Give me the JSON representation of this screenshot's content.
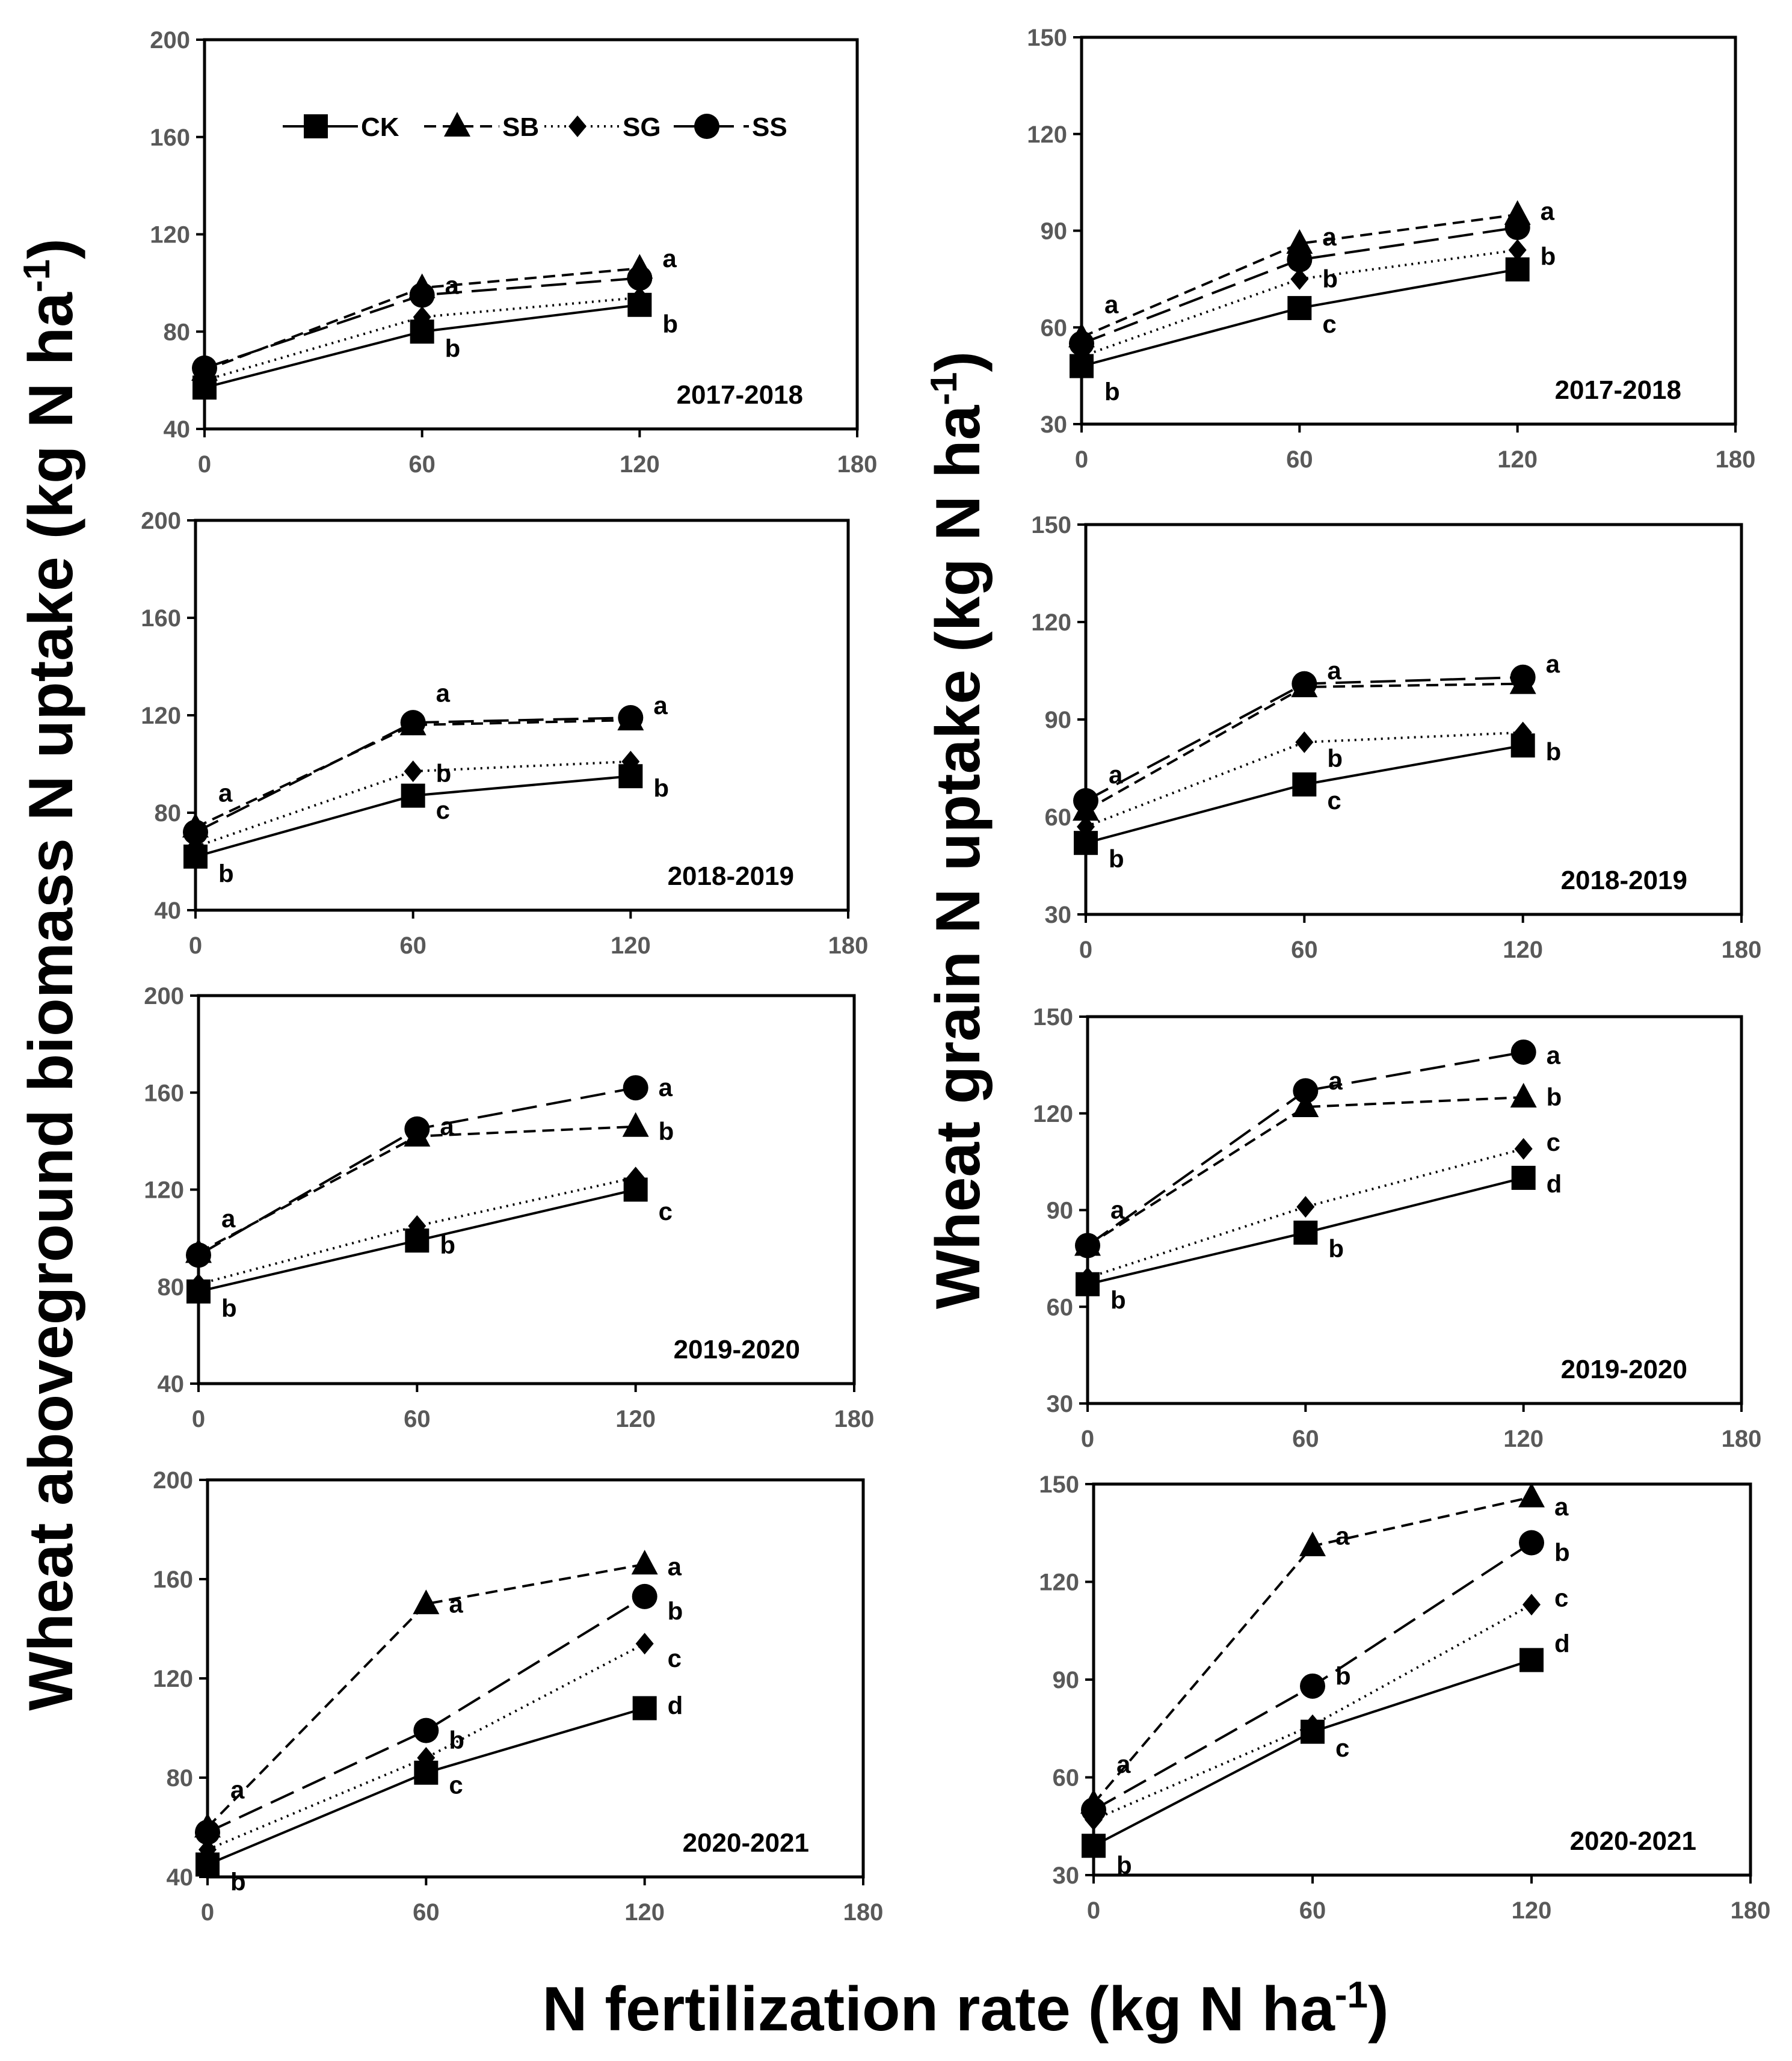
{
  "legend": {
    "entries": [
      {
        "key": "CK",
        "label": "CK"
      },
      {
        "key": "SB",
        "label": "SB"
      },
      {
        "key": "SG",
        "label": "SG"
      },
      {
        "key": "SS",
        "label": "SS"
      }
    ]
  },
  "axis_titles": {
    "left_y": "Wheat aboveground biomass N uptake (kg N ha",
    "right_y": "Wheat grain N uptake (kg N ha",
    "x_main": "N fertilization rate (kg N ha",
    "unit_superscript": "-1",
    "closing_paren": ")"
  },
  "series_styles": {
    "CK": {
      "marker": "square",
      "dash": "none"
    },
    "SB": {
      "marker": "triangle",
      "dash": "short-dash"
    },
    "SG": {
      "marker": "diamond",
      "dash": "dotted"
    },
    "SS": {
      "marker": "circle",
      "dash": "long-dash"
    }
  },
  "chart_data": [
    {
      "id": "biomass-2017-2018",
      "type": "line",
      "year_label": "2017-2018",
      "ylabel": "Wheat aboveground biomass N uptake (kg N ha-1)",
      "xlabel": "N fertilization rate (kg N ha-1)",
      "xlim": [
        0,
        180
      ],
      "ylim": [
        40,
        200
      ],
      "x_ticks": [
        0,
        60,
        120,
        180
      ],
      "y_ticks": [
        40,
        80,
        120,
        160,
        200
      ],
      "x_tick_labels": [
        "0",
        "60",
        "120",
        "180"
      ],
      "y_tick_labels": [
        "40",
        "80",
        "120",
        "160",
        "200"
      ],
      "x": [
        0,
        60,
        120
      ],
      "series": [
        {
          "name": "CK",
          "values": [
            57,
            80,
            91
          ]
        },
        {
          "name": "SB",
          "values": [
            64,
            98,
            106
          ]
        },
        {
          "name": "SG",
          "values": [
            60,
            86,
            94
          ]
        },
        {
          "name": "SS",
          "values": [
            65,
            95,
            102
          ]
        }
      ],
      "annotations": [
        {
          "x": 0,
          "y": 0,
          "text": ""
        },
        {
          "x": 60,
          "y": 99,
          "text": "a"
        },
        {
          "x": 60,
          "y": 73,
          "text": "b"
        },
        {
          "x": 120,
          "y": 110,
          "text": "a"
        },
        {
          "x": 120,
          "y": 83,
          "text": "b"
        }
      ]
    },
    {
      "id": "grain-2017-2018",
      "type": "line",
      "year_label": "2017-2018",
      "ylabel": "Wheat grain N uptake (kg N ha-1)",
      "xlabel": "N fertilization rate (kg N ha-1)",
      "xlim": [
        0,
        180
      ],
      "ylim": [
        30,
        150
      ],
      "x_ticks": [
        0,
        60,
        120,
        180
      ],
      "y_ticks": [
        30,
        60,
        90,
        120,
        150
      ],
      "x_tick_labels": [
        "0",
        "60",
        "120",
        "180"
      ],
      "y_tick_labels": [
        "30",
        "60",
        "90",
        "120",
        "150"
      ],
      "x": [
        0,
        60,
        120
      ],
      "series": [
        {
          "name": "CK",
          "values": [
            48,
            66,
            78
          ]
        },
        {
          "name": "SB",
          "values": [
            57,
            86,
            95
          ]
        },
        {
          "name": "SG",
          "values": [
            51,
            75,
            84
          ]
        },
        {
          "name": "SS",
          "values": [
            55,
            81,
            91
          ]
        }
      ],
      "annotations": [
        {
          "x": 0,
          "y": 67,
          "text": "a"
        },
        {
          "x": 0,
          "y": 40,
          "text": "b"
        },
        {
          "x": 60,
          "y": 88,
          "text": "a"
        },
        {
          "x": 60,
          "y": 75,
          "text": "b"
        },
        {
          "x": 60,
          "y": 61,
          "text": "c"
        },
        {
          "x": 120,
          "y": 96,
          "text": "a"
        },
        {
          "x": 120,
          "y": 82,
          "text": "b"
        }
      ]
    },
    {
      "id": "biomass-2018-2019",
      "type": "line",
      "year_label": "2018-2019",
      "ylabel": "Wheat aboveground biomass N uptake (kg N ha-1)",
      "xlabel": "N fertilization rate (kg N ha-1)",
      "xlim": [
        0,
        180
      ],
      "ylim": [
        40,
        200
      ],
      "x_ticks": [
        0,
        60,
        120,
        180
      ],
      "y_ticks": [
        40,
        80,
        120,
        160,
        200
      ],
      "x_tick_labels": [
        "0",
        "60",
        "120",
        "180"
      ],
      "y_tick_labels": [
        "40",
        "80",
        "120",
        "160",
        "200"
      ],
      "x": [
        0,
        60,
        120
      ],
      "series": [
        {
          "name": "CK",
          "values": [
            62,
            87,
            95
          ]
        },
        {
          "name": "SB",
          "values": [
            74,
            116,
            118
          ]
        },
        {
          "name": "SG",
          "values": [
            66,
            97,
            101
          ]
        },
        {
          "name": "SS",
          "values": [
            72,
            117,
            119
          ]
        }
      ],
      "annotations": [
        {
          "x": 0,
          "y": 88,
          "text": "a"
        },
        {
          "x": 0,
          "y": 55,
          "text": "b"
        },
        {
          "x": 60,
          "y": 129,
          "text": "a"
        },
        {
          "x": 60,
          "y": 96,
          "text": "b"
        },
        {
          "x": 60,
          "y": 81,
          "text": "c"
        },
        {
          "x": 120,
          "y": 124,
          "text": "a"
        },
        {
          "x": 120,
          "y": 90,
          "text": "b"
        }
      ]
    },
    {
      "id": "grain-2018-2019",
      "type": "line",
      "year_label": "2018-2019",
      "ylabel": "Wheat grain N uptake (kg N ha-1)",
      "xlabel": "N fertilization rate (kg N ha-1)",
      "xlim": [
        0,
        180
      ],
      "ylim": [
        30,
        150
      ],
      "x_ticks": [
        0,
        60,
        120,
        180
      ],
      "y_ticks": [
        30,
        60,
        90,
        120,
        150
      ],
      "x_tick_labels": [
        "0",
        "60",
        "120",
        "180"
      ],
      "y_tick_labels": [
        "30",
        "60",
        "90",
        "120",
        "150"
      ],
      "x": [
        0,
        60,
        120
      ],
      "series": [
        {
          "name": "CK",
          "values": [
            52,
            70,
            82
          ]
        },
        {
          "name": "SB",
          "values": [
            62,
            100,
            101
          ]
        },
        {
          "name": "SG",
          "values": [
            57,
            83,
            86
          ]
        },
        {
          "name": "SS",
          "values": [
            65,
            101,
            103
          ]
        }
      ],
      "annotations": [
        {
          "x": 0,
          "y": 73,
          "text": "a"
        },
        {
          "x": 0,
          "y": 47,
          "text": "b"
        },
        {
          "x": 60,
          "y": 105,
          "text": "a"
        },
        {
          "x": 60,
          "y": 78,
          "text": "b"
        },
        {
          "x": 60,
          "y": 65,
          "text": "c"
        },
        {
          "x": 120,
          "y": 107,
          "text": "a"
        },
        {
          "x": 120,
          "y": 80,
          "text": "b"
        }
      ]
    },
    {
      "id": "biomass-2019-2020",
      "type": "line",
      "year_label": "2019-2020",
      "ylabel": "Wheat aboveground biomass N uptake (kg N ha-1)",
      "xlabel": "N fertilization rate (kg N ha-1)",
      "xlim": [
        0,
        180
      ],
      "ylim": [
        40,
        200
      ],
      "x_ticks": [
        0,
        60,
        120,
        180
      ],
      "y_ticks": [
        40,
        80,
        120,
        160,
        200
      ],
      "x_tick_labels": [
        "0",
        "60",
        "120",
        "180"
      ],
      "y_tick_labels": [
        "40",
        "80",
        "120",
        "160",
        "200"
      ],
      "x": [
        0,
        60,
        120
      ],
      "series": [
        {
          "name": "CK",
          "values": [
            78,
            99,
            120
          ]
        },
        {
          "name": "SB",
          "values": [
            94,
            142,
            146
          ]
        },
        {
          "name": "SG",
          "values": [
            81,
            105,
            125
          ]
        },
        {
          "name": "SS",
          "values": [
            93,
            145,
            162
          ]
        }
      ],
      "annotations": [
        {
          "x": 0,
          "y": 108,
          "text": "a"
        },
        {
          "x": 0,
          "y": 71,
          "text": "b"
        },
        {
          "x": 60,
          "y": 146,
          "text": "a"
        },
        {
          "x": 60,
          "y": 97,
          "text": "b"
        },
        {
          "x": 120,
          "y": 162,
          "text": "a"
        },
        {
          "x": 120,
          "y": 144,
          "text": "b"
        },
        {
          "x": 120,
          "y": 111,
          "text": "c"
        }
      ]
    },
    {
      "id": "grain-2019-2020",
      "type": "line",
      "year_label": "2019-2020",
      "ylabel": "Wheat grain N uptake (kg N ha-1)",
      "xlabel": "N fertilization rate (kg N ha-1)",
      "xlim": [
        0,
        180
      ],
      "ylim": [
        30,
        150
      ],
      "x_ticks": [
        0,
        60,
        120,
        180
      ],
      "y_ticks": [
        30,
        60,
        90,
        120,
        150
      ],
      "x_tick_labels": [
        "0",
        "60",
        "120",
        "180"
      ],
      "y_tick_labels": [
        "30",
        "60",
        "90",
        "120",
        "150"
      ],
      "x": [
        0,
        60,
        120
      ],
      "series": [
        {
          "name": "CK",
          "values": [
            67,
            83,
            100
          ]
        },
        {
          "name": "SB",
          "values": [
            79,
            122,
            125
          ]
        },
        {
          "name": "SG",
          "values": [
            69,
            91,
            109
          ]
        },
        {
          "name": "SS",
          "values": [
            79,
            127,
            139
          ]
        }
      ],
      "annotations": [
        {
          "x": 0,
          "y": 90,
          "text": "a"
        },
        {
          "x": 0,
          "y": 62,
          "text": "b"
        },
        {
          "x": 60,
          "y": 130,
          "text": "a"
        },
        {
          "x": 60,
          "y": 78,
          "text": "b"
        },
        {
          "x": 120,
          "y": 138,
          "text": "a"
        },
        {
          "x": 120,
          "y": 125,
          "text": "b"
        },
        {
          "x": 120,
          "y": 111,
          "text": "c"
        },
        {
          "x": 120,
          "y": 98,
          "text": "d"
        }
      ]
    },
    {
      "id": "biomass-2020-2021",
      "type": "line",
      "year_label": "2020-2021",
      "ylabel": "Wheat aboveground biomass N uptake (kg N ha-1)",
      "xlabel": "N fertilization rate (kg N ha-1)",
      "xlim": [
        0,
        180
      ],
      "ylim": [
        40,
        200
      ],
      "x_ticks": [
        0,
        60,
        120,
        180
      ],
      "y_ticks": [
        40,
        80,
        120,
        160,
        200
      ],
      "x_tick_labels": [
        "0",
        "60",
        "120",
        "180"
      ],
      "y_tick_labels": [
        "40",
        "80",
        "120",
        "160",
        "200"
      ],
      "x": [
        0,
        60,
        120
      ],
      "series": [
        {
          "name": "CK",
          "values": [
            45,
            82,
            108
          ]
        },
        {
          "name": "SB",
          "values": [
            60,
            150,
            166
          ]
        },
        {
          "name": "SG",
          "values": [
            51,
            88,
            134
          ]
        },
        {
          "name": "SS",
          "values": [
            58,
            99,
            153
          ]
        }
      ],
      "annotations": [
        {
          "x": 0,
          "y": 75,
          "text": "a"
        },
        {
          "x": 0,
          "y": 38,
          "text": "b"
        },
        {
          "x": 60,
          "y": 150,
          "text": "a"
        },
        {
          "x": 60,
          "y": 95,
          "text": "b"
        },
        {
          "x": 60,
          "y": 77,
          "text": "c"
        },
        {
          "x": 120,
          "y": 165,
          "text": "a"
        },
        {
          "x": 120,
          "y": 147,
          "text": "b"
        },
        {
          "x": 120,
          "y": 128,
          "text": "c"
        },
        {
          "x": 120,
          "y": 109,
          "text": "d"
        }
      ]
    },
    {
      "id": "grain-2020-2021",
      "type": "line",
      "year_label": "2020-2021",
      "ylabel": "Wheat grain N uptake (kg N ha-1)",
      "xlabel": "N fertilization rate (kg N ha-1)",
      "xlim": [
        0,
        180
      ],
      "ylim": [
        30,
        150
      ],
      "x_ticks": [
        0,
        60,
        120,
        180
      ],
      "y_ticks": [
        30,
        60,
        90,
        120,
        150
      ],
      "x_tick_labels": [
        "0",
        "60",
        "120",
        "180"
      ],
      "y_tick_labels": [
        "30",
        "60",
        "90",
        "120",
        "150"
      ],
      "x": [
        0,
        60,
        120
      ],
      "series": [
        {
          "name": "CK",
          "values": [
            39,
            74,
            96
          ]
        },
        {
          "name": "SB",
          "values": [
            52,
            131,
            146
          ]
        },
        {
          "name": "SG",
          "values": [
            47,
            76,
            113
          ]
        },
        {
          "name": "SS",
          "values": [
            50,
            88,
            132
          ]
        }
      ],
      "annotations": [
        {
          "x": 0,
          "y": 64,
          "text": "a"
        },
        {
          "x": 0,
          "y": 33,
          "text": "b"
        },
        {
          "x": 60,
          "y": 134,
          "text": "a"
        },
        {
          "x": 60,
          "y": 91,
          "text": "b"
        },
        {
          "x": 60,
          "y": 69,
          "text": "c"
        },
        {
          "x": 120,
          "y": 143,
          "text": "a"
        },
        {
          "x": 120,
          "y": 129,
          "text": "b"
        },
        {
          "x": 120,
          "y": 115,
          "text": "c"
        },
        {
          "x": 120,
          "y": 101,
          "text": "d"
        }
      ]
    }
  ]
}
